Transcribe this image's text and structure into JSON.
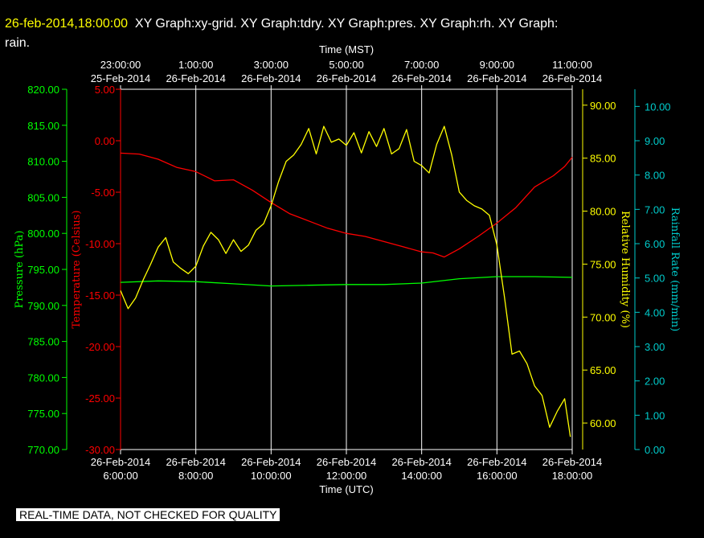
{
  "banner": {
    "datetime": "26-feb-2014,18:00:00",
    "line1": "XY Graph:xy-grid.  XY Graph:tdry.  XY Graph:pres.  XY Graph:rh.  XY Graph:",
    "line2": "rain."
  },
  "footer_note": "REAL-TIME DATA, NOT CHECKED FOR QUALITY",
  "colors": {
    "background": "#000000",
    "plot_frame": "#ffffff",
    "temperature": "#ff0000",
    "pressure": "#00ff00",
    "humidity": "#ffff00",
    "rainfall": "#00cccc",
    "grid": "#ffffff"
  },
  "chart_data": {
    "type": "line",
    "x_top_title": "Time (MST)",
    "x_bottom_title": "Time (UTC)",
    "x_range": [
      6.0,
      18.0
    ],
    "x_bottom_ticks": [
      {
        "x": 6,
        "date": "26-Feb-2014",
        "time": "6:00:00"
      },
      {
        "x": 8,
        "date": "26-Feb-2014",
        "time": "8:00:00"
      },
      {
        "x": 10,
        "date": "26-Feb-2014",
        "time": "10:00:00"
      },
      {
        "x": 12,
        "date": "26-Feb-2014",
        "time": "12:00:00"
      },
      {
        "x": 14,
        "date": "26-Feb-2014",
        "time": "14:00:00"
      },
      {
        "x": 16,
        "date": "26-Feb-2014",
        "time": "16:00:00"
      },
      {
        "x": 18,
        "date": "26-Feb-2014",
        "time": "18:00:00"
      }
    ],
    "x_top_ticks": [
      {
        "x": 6,
        "time": "23:00:00",
        "date": "25-Feb-2014"
      },
      {
        "x": 8,
        "time": "1:00:00",
        "date": "26-Feb-2014"
      },
      {
        "x": 10,
        "time": "3:00:00",
        "date": "26-Feb-2014"
      },
      {
        "x": 12,
        "time": "5:00:00",
        "date": "26-Feb-2014"
      },
      {
        "x": 14,
        "time": "7:00:00",
        "date": "26-Feb-2014"
      },
      {
        "x": 16,
        "time": "9:00:00",
        "date": "26-Feb-2014"
      },
      {
        "x": 18,
        "time": "11:00:00",
        "date": "26-Feb-2014"
      }
    ],
    "grid": "vertical",
    "axes": {
      "pressure": {
        "label": "Pressure (hPa)",
        "range": [
          770,
          820
        ],
        "ticks": [
          "820.00",
          "815.00",
          "810.00",
          "805.00",
          "800.00",
          "795.00",
          "790.00",
          "785.00",
          "780.00",
          "775.00",
          "770.00"
        ]
      },
      "temperature": {
        "label": "Temperature (Celsius)",
        "range": [
          -30,
          5
        ],
        "ticks": [
          "5.00",
          "0.00",
          "-5.00",
          "-10.00",
          "-15.00",
          "-20.00",
          "-25.00",
          "-30.00"
        ]
      },
      "humidity": {
        "label": "Relative Humidity (%)",
        "range": [
          57.5,
          91.5
        ],
        "ticks": [
          "90.00",
          "85.00",
          "80.00",
          "75.00",
          "70.00",
          "65.00",
          "60.00"
        ]
      },
      "rainfall": {
        "label": "Rainfall Rate (mm/min)",
        "range": [
          0,
          10.5
        ],
        "ticks": [
          "10.00",
          "9.00",
          "8.00",
          "7.00",
          "6.00",
          "5.00",
          "4.00",
          "3.00",
          "2.00",
          "1.00",
          "0.00"
        ]
      }
    },
    "series": [
      {
        "name": "tdry",
        "axis": "temperature",
        "x": [
          6.0,
          6.5,
          7.0,
          7.5,
          8.0,
          8.5,
          9.0,
          9.5,
          10.0,
          10.5,
          11.0,
          11.5,
          12.0,
          12.5,
          13.0,
          13.5,
          14.0,
          14.3,
          14.6,
          15.0,
          15.5,
          16.0,
          16.5,
          17.0,
          17.5,
          17.8,
          18.0
        ],
        "y": [
          -1.2,
          -1.3,
          -1.8,
          -2.6,
          -3.0,
          -3.9,
          -3.8,
          -4.8,
          -6.0,
          -7.1,
          -7.8,
          -8.5,
          -9.0,
          -9.3,
          -9.8,
          -10.3,
          -10.8,
          -10.9,
          -11.3,
          -10.5,
          -9.3,
          -8.0,
          -6.5,
          -4.5,
          -3.4,
          -2.5,
          -1.6
        ]
      },
      {
        "name": "pres",
        "axis": "pressure",
        "x": [
          6.0,
          7.0,
          8.0,
          9.0,
          10.0,
          11.0,
          12.0,
          13.0,
          14.0,
          15.0,
          16.0,
          17.0,
          18.0
        ],
        "y": [
          793.2,
          793.4,
          793.3,
          793.0,
          792.7,
          792.8,
          792.9,
          792.9,
          793.1,
          793.7,
          794.0,
          794.0,
          793.9
        ]
      },
      {
        "name": "rh",
        "axis": "humidity",
        "x": [
          6.0,
          6.2,
          6.4,
          6.6,
          6.8,
          7.0,
          7.2,
          7.4,
          7.6,
          7.8,
          8.0,
          8.2,
          8.4,
          8.6,
          8.8,
          9.0,
          9.2,
          9.4,
          9.6,
          9.8,
          10.0,
          10.2,
          10.4,
          10.6,
          10.8,
          11.0,
          11.2,
          11.4,
          11.6,
          11.8,
          12.0,
          12.2,
          12.4,
          12.6,
          12.8,
          13.0,
          13.2,
          13.4,
          13.6,
          13.8,
          14.0,
          14.2,
          14.4,
          14.6,
          14.8,
          15.0,
          15.2,
          15.4,
          15.6,
          15.8,
          16.0,
          16.2,
          16.4,
          16.6,
          16.8,
          17.0,
          17.2,
          17.4,
          17.6,
          17.8,
          17.95
        ],
        "y": [
          72.5,
          70.8,
          71.8,
          73.5,
          75.0,
          76.6,
          77.5,
          75.2,
          74.6,
          74.1,
          74.8,
          76.7,
          78.0,
          77.3,
          76.0,
          77.3,
          76.2,
          76.8,
          78.2,
          78.8,
          80.5,
          82.8,
          84.7,
          85.3,
          86.3,
          87.8,
          85.4,
          88.0,
          86.5,
          86.8,
          86.2,
          87.4,
          85.5,
          87.5,
          86.1,
          87.8,
          85.4,
          85.9,
          87.7,
          84.7,
          84.3,
          83.6,
          86.3,
          88.0,
          85.3,
          81.8,
          81.0,
          80.5,
          80.2,
          79.6,
          76.8,
          71.9,
          66.5,
          66.8,
          65.6,
          63.5,
          62.6,
          59.6,
          61.1,
          62.3,
          58.7
        ]
      },
      {
        "name": "rain",
        "axis": "rainfall",
        "x": [],
        "y": []
      }
    ]
  }
}
